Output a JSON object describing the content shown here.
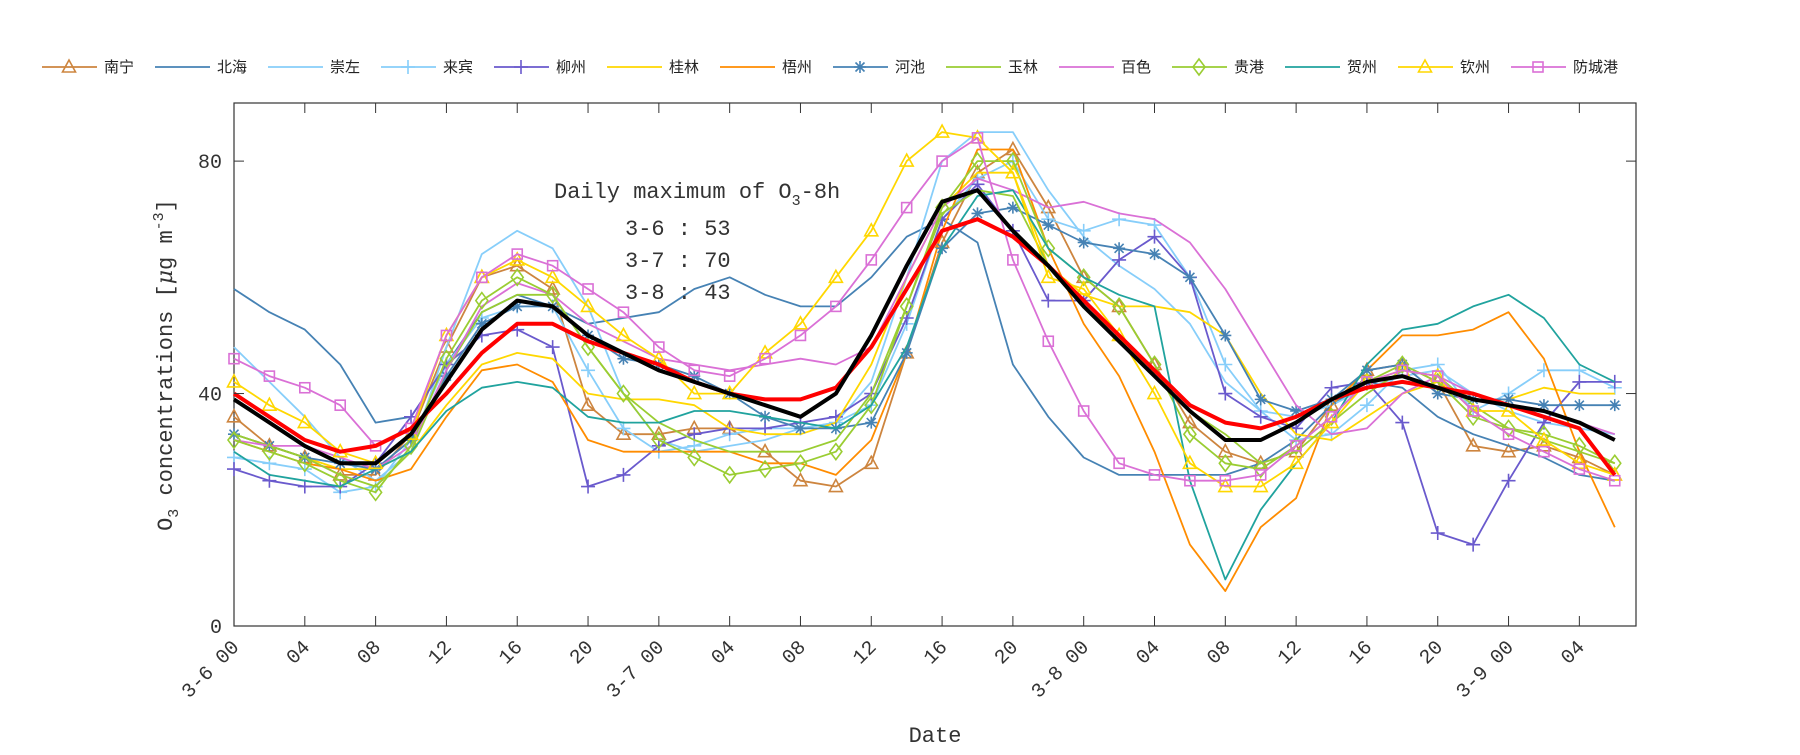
{
  "chart_data": {
    "type": "line",
    "xlabel": "Date",
    "ylabel": "O3 concentrations [μg m-3]",
    "ylabel_parts": {
      "base": "O",
      "sub": "3",
      "text": " concentrations [",
      "mu": "μ",
      "unit": "g m",
      "sup": "-3",
      "close": "]"
    },
    "ylim": [
      0,
      90
    ],
    "yticks": [
      0,
      40,
      80
    ],
    "xticks": [
      "3-6 00",
      "04",
      "08",
      "12",
      "16",
      "20",
      "3-7 00",
      "04",
      "08",
      "12",
      "16",
      "20",
      "3-8 00",
      "04",
      "08",
      "12",
      "16",
      "20",
      "3-9 00",
      "04"
    ],
    "grid": false,
    "legend_position": "top",
    "annotation": {
      "title": "Daily maximum of O",
      "title_sub": "3",
      "title_suffix": "-8h",
      "lines": [
        "3-6 : 53",
        "3-7 : 70",
        "3-8 : 43"
      ]
    },
    "x": [
      "3-6 00",
      "3-6 02",
      "3-6 04",
      "3-6 06",
      "3-6 08",
      "3-6 10",
      "3-6 12",
      "3-6 14",
      "3-6 16",
      "3-6 18",
      "3-6 20",
      "3-6 22",
      "3-7 00",
      "3-7 02",
      "3-7 04",
      "3-7 06",
      "3-7 08",
      "3-7 10",
      "3-7 12",
      "3-7 14",
      "3-7 16",
      "3-7 18",
      "3-7 20",
      "3-7 22",
      "3-8 00",
      "3-8 02",
      "3-8 04",
      "3-8 06",
      "3-8 08",
      "3-8 10",
      "3-8 12",
      "3-8 14",
      "3-8 16",
      "3-8 18",
      "3-8 20",
      "3-8 22",
      "3-9 00",
      "3-9 02",
      "3-9 04",
      "3-9 06"
    ],
    "series": [
      {
        "name": "南宁",
        "color": "#cd853f",
        "marker": "triangle",
        "values": [
          36,
          31,
          29,
          26,
          26,
          33,
          48,
          60,
          62,
          58,
          38,
          33,
          33,
          34,
          34,
          30,
          25,
          24,
          28,
          47,
          66,
          78,
          82,
          72,
          60,
          55,
          45,
          35,
          30,
          28,
          30,
          38,
          44,
          45,
          42,
          31,
          30,
          31,
          29,
          26
        ]
      },
      {
        "name": "北海",
        "color": "#4682b4",
        "marker": "none",
        "values": [
          58,
          54,
          51,
          45,
          35,
          36,
          45,
          54,
          57,
          55,
          52,
          53,
          54,
          58,
          60,
          57,
          55,
          55,
          60,
          67,
          70,
          66,
          45,
          36,
          29,
          26,
          26,
          26,
          26,
          28,
          32,
          38,
          42,
          41,
          36,
          33,
          31,
          29,
          26,
          25
        ]
      },
      {
        "name": "崇左",
        "color": "#87cefa",
        "marker": "none",
        "values": [
          48,
          42,
          36,
          29,
          25,
          30,
          48,
          64,
          68,
          65,
          55,
          40,
          32,
          30,
          31,
          32,
          34,
          35,
          42,
          60,
          80,
          85,
          85,
          75,
          67,
          62,
          58,
          52,
          42,
          37,
          36,
          38,
          41,
          43,
          44,
          40,
          37,
          35,
          34,
          33
        ]
      },
      {
        "name": "来宾",
        "color": "#87cefa",
        "marker": "plus",
        "values": [
          29,
          28,
          27,
          23,
          24,
          32,
          45,
          53,
          55,
          55,
          44,
          34,
          30,
          31,
          33,
          34,
          34,
          35,
          38,
          52,
          70,
          77,
          80,
          70,
          68,
          70,
          69,
          60,
          45,
          37,
          32,
          33,
          38,
          44,
          45,
          37,
          40,
          44,
          44,
          41
        ]
      },
      {
        "name": "柳州",
        "color": "#6a5acd",
        "marker": "plus",
        "values": [
          27,
          25,
          24,
          24,
          28,
          36,
          45,
          50,
          51,
          48,
          24,
          26,
          31,
          33,
          34,
          34,
          35,
          36,
          40,
          53,
          70,
          76,
          68,
          56,
          56,
          63,
          67,
          60,
          40,
          36,
          34,
          41,
          42,
          35,
          16,
          14,
          25,
          35,
          42,
          42
        ]
      },
      {
        "name": "桂林",
        "color": "#ffd700",
        "marker": "none",
        "values": [
          33,
          31,
          29,
          27,
          27,
          30,
          38,
          45,
          47,
          46,
          40,
          39,
          39,
          38,
          34,
          33,
          33,
          35,
          45,
          60,
          72,
          78,
          78,
          62,
          57,
          55,
          55,
          54,
          50,
          40,
          33,
          32,
          36,
          40,
          42,
          39,
          39,
          41,
          40,
          40
        ]
      },
      {
        "name": "梧州",
        "color": "#ff8c00",
        "marker": "none",
        "values": [
          32,
          30,
          28,
          27,
          25,
          27,
          36,
          44,
          45,
          42,
          32,
          30,
          30,
          30,
          30,
          28,
          28,
          26,
          32,
          47,
          68,
          82,
          82,
          65,
          52,
          43,
          30,
          14,
          6,
          17,
          22,
          38,
          44,
          50,
          50,
          51,
          54,
          46,
          30,
          17
        ]
      },
      {
        "name": "河池",
        "color": "#4682b4",
        "marker": "star",
        "values": [
          33,
          31,
          29,
          28,
          27,
          32,
          43,
          52,
          55,
          55,
          50,
          46,
          45,
          43,
          40,
          36,
          34,
          34,
          35,
          47,
          65,
          71,
          72,
          69,
          66,
          65,
          64,
          60,
          50,
          39,
          37,
          39,
          44,
          45,
          40,
          39,
          39,
          38,
          38,
          38
        ]
      },
      {
        "name": "玉林",
        "color": "#9acd32",
        "marker": "none",
        "values": [
          33,
          31,
          29,
          26,
          24,
          30,
          44,
          54,
          57,
          57,
          48,
          40,
          35,
          32,
          30,
          30,
          30,
          32,
          40,
          55,
          71,
          75,
          74,
          62,
          55,
          50,
          43,
          37,
          33,
          28,
          30,
          35,
          40,
          44,
          43,
          38,
          34,
          32,
          30,
          28
        ]
      },
      {
        "name": "百色",
        "color": "#da70d6",
        "marker": "none",
        "values": [
          32,
          31,
          31,
          29,
          27,
          31,
          44,
          55,
          59,
          57,
          52,
          49,
          46,
          45,
          44,
          45,
          46,
          45,
          48,
          60,
          72,
          77,
          75,
          72,
          73,
          71,
          70,
          66,
          58,
          48,
          38,
          33,
          34,
          40,
          43,
          40,
          38,
          37,
          35,
          33
        ]
      },
      {
        "name": "贵港",
        "color": "#9acd32",
        "marker": "diamond",
        "values": [
          32,
          30,
          28,
          25,
          23,
          31,
          46,
          56,
          60,
          57,
          48,
          40,
          32,
          29,
          26,
          27,
          28,
          30,
          38,
          55,
          72,
          80,
          80,
          65,
          60,
          55,
          45,
          33,
          28,
          27,
          31,
          36,
          42,
          45,
          42,
          36,
          34,
          33,
          31,
          28
        ]
      },
      {
        "name": "贺州",
        "color": "#20a39e",
        "marker": "none",
        "values": [
          30,
          26,
          25,
          24,
          27,
          30,
          37,
          41,
          42,
          41,
          36,
          35,
          35,
          37,
          37,
          36,
          35,
          34,
          38,
          48,
          65,
          74,
          75,
          65,
          60,
          57,
          55,
          25,
          8,
          20,
          28,
          35,
          45,
          51,
          52,
          55,
          57,
          53,
          45,
          42
        ]
      },
      {
        "name": "钦州",
        "color": "#ffd700",
        "marker": "triangle",
        "values": [
          42,
          38,
          35,
          30,
          28,
          33,
          50,
          60,
          63,
          60,
          55,
          50,
          46,
          40,
          40,
          47,
          52,
          60,
          68,
          80,
          85,
          84,
          78,
          60,
          58,
          50,
          40,
          28,
          24,
          24,
          28,
          35,
          42,
          44,
          43,
          37,
          37,
          32,
          28,
          26
        ]
      },
      {
        "name": "防城港",
        "color": "#da70d6",
        "marker": "square",
        "values": [
          46,
          43,
          41,
          38,
          31,
          34,
          50,
          60,
          64,
          62,
          58,
          54,
          48,
          44,
          43,
          46,
          50,
          55,
          63,
          72,
          80,
          84,
          63,
          49,
          37,
          28,
          26,
          25,
          25,
          26,
          31,
          36,
          42,
          44,
          43,
          37,
          33,
          30,
          27,
          25
        ]
      },
      {
        "name": "",
        "color": "#ff0000",
        "marker": "none",
        "thick": true,
        "values": [
          40,
          36,
          32,
          30,
          31,
          34,
          40,
          47,
          52,
          52,
          49,
          47,
          45,
          42,
          40,
          39,
          39,
          41,
          48,
          58,
          68,
          70,
          67,
          62,
          56,
          50,
          44,
          38,
          35,
          34,
          36,
          39,
          41,
          42,
          41,
          40,
          38,
          36,
          34,
          26
        ]
      },
      {
        "name": "",
        "color": "#000000",
        "marker": "none",
        "thick": true,
        "values": [
          39,
          35,
          31,
          28,
          28,
          33,
          42,
          51,
          56,
          55,
          50,
          47,
          44,
          42,
          40,
          38,
          36,
          40,
          50,
          62,
          73,
          75,
          68,
          62,
          55,
          49,
          43,
          37,
          32,
          32,
          35,
          39,
          42,
          43,
          41,
          39,
          38,
          37,
          35,
          32
        ]
      }
    ]
  }
}
